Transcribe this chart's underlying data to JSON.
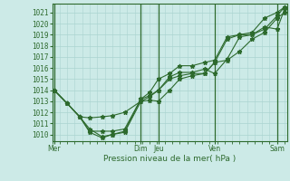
{
  "xlabel": "Pression niveau de la mer( hPa )",
  "background_color": "#cceae7",
  "grid_color": "#aad4d0",
  "line_color": "#2d6a2d",
  "text_color": "#2d6a2d",
  "vline_color": "#2d6a2d",
  "ylim": [
    1009.4,
    1021.8
  ],
  "yticks": [
    1010,
    1011,
    1012,
    1013,
    1014,
    1015,
    1016,
    1017,
    1018,
    1019,
    1020,
    1021
  ],
  "xlim": [
    0,
    9.4
  ],
  "day_labels": [
    "Mer",
    "Dim",
    "Jeu",
    "Ven",
    "Sam"
  ],
  "day_x": [
    0.08,
    3.55,
    4.25,
    6.5,
    9.0
  ],
  "vline_x": [
    0.08,
    3.55,
    4.25,
    6.5,
    9.0
  ],
  "series": [
    {
      "x": [
        0.08,
        0.6,
        1.1,
        1.5,
        2.0,
        2.4,
        2.9,
        3.55,
        3.9,
        4.25,
        4.7,
        5.1,
        5.6,
        6.1,
        6.5,
        7.0,
        7.5,
        8.0,
        8.5,
        9.0,
        9.3
      ],
      "y": [
        1014.0,
        1012.8,
        1011.6,
        1011.5,
        1011.6,
        1011.7,
        1012.0,
        1013.0,
        1013.1,
        1013.0,
        1014.0,
        1015.0,
        1015.3,
        1015.5,
        1016.5,
        1018.6,
        1019.0,
        1019.0,
        1019.5,
        1020.7,
        1021.5
      ]
    },
    {
      "x": [
        0.08,
        0.6,
        1.1,
        1.5,
        2.0,
        2.4,
        2.9,
        3.55,
        3.9,
        4.25,
        4.7,
        5.1,
        5.6,
        6.1,
        6.5,
        7.0,
        7.5,
        8.0,
        8.5,
        9.0,
        9.3
      ],
      "y": [
        1014.0,
        1012.8,
        1011.6,
        1010.5,
        1009.8,
        1010.0,
        1010.2,
        1013.0,
        1013.4,
        1014.0,
        1015.0,
        1015.3,
        1015.5,
        1015.5,
        1016.5,
        1016.7,
        1017.5,
        1018.6,
        1019.2,
        1020.5,
        1021.0
      ]
    },
    {
      "x": [
        0.08,
        0.6,
        1.1,
        1.5,
        2.0,
        2.4,
        2.9,
        3.55,
        3.9,
        4.25,
        4.7,
        5.1,
        5.6,
        6.1,
        6.5,
        7.0,
        7.5,
        8.0,
        8.5,
        9.0,
        9.3
      ],
      "y": [
        1014.0,
        1012.8,
        1011.6,
        1010.2,
        1009.7,
        1010.0,
        1010.3,
        1013.2,
        1013.5,
        1014.0,
        1015.2,
        1015.6,
        1015.6,
        1015.9,
        1015.5,
        1016.8,
        1018.8,
        1019.0,
        1019.7,
        1019.5,
        1021.3
      ]
    },
    {
      "x": [
        0.08,
        0.6,
        1.1,
        1.5,
        2.0,
        2.4,
        2.9,
        3.55,
        3.9,
        4.25,
        4.7,
        5.1,
        5.6,
        6.1,
        6.5,
        7.0,
        7.5,
        8.0,
        8.5,
        9.0,
        9.3
      ],
      "y": [
        1014.0,
        1012.8,
        1011.6,
        1010.3,
        1010.3,
        1010.3,
        1010.5,
        1013.2,
        1013.8,
        1015.0,
        1015.5,
        1016.2,
        1016.2,
        1016.5,
        1016.7,
        1018.8,
        1019.0,
        1019.2,
        1020.5,
        1021.0,
        1021.5
      ]
    }
  ],
  "marker": "*",
  "marker_size": 3.5,
  "linewidth": 0.8
}
